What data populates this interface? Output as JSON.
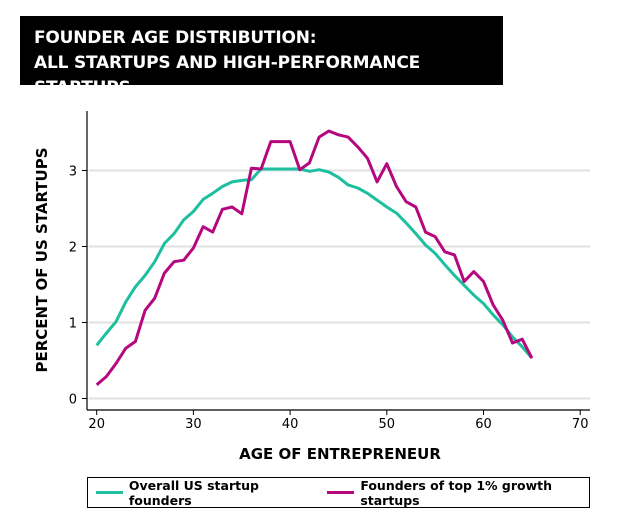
{
  "title_lines": [
    "FOUNDER AGE DISTRIBUTION:",
    "ALL STARTUPS AND HIGH-PERFORMANCE STARTUPS"
  ],
  "chart_data": {
    "type": "line",
    "title": "FOUNDER AGE DISTRIBUTION: ALL STARTUPS AND HIGH-PERFORMANCE STARTUPS",
    "xlabel": "AGE OF ENTREPRENEUR",
    "ylabel": "PERCENT OF US STARTUPS",
    "xlim": [
      20,
      70
    ],
    "ylim": [
      0,
      3.6
    ],
    "xticks": [
      20,
      30,
      40,
      50,
      60,
      70
    ],
    "yticks": [
      0,
      1,
      2,
      3
    ],
    "grid": true,
    "legend_position": "bottom",
    "x": [
      20,
      21,
      22,
      23,
      24,
      25,
      26,
      27,
      28,
      29,
      30,
      31,
      32,
      33,
      34,
      35,
      36,
      37,
      38,
      39,
      40,
      41,
      42,
      43,
      44,
      45,
      46,
      47,
      48,
      49,
      50,
      51,
      52,
      53,
      54,
      55,
      56,
      57,
      58,
      59,
      60,
      61,
      62,
      63,
      64,
      65
    ],
    "series": [
      {
        "name": "Overall US startup founders",
        "color": "#1dbf9f",
        "values": [
          0.7,
          0.86,
          1.01,
          1.27,
          1.47,
          1.62,
          1.8,
          2.04,
          2.17,
          2.35,
          2.46,
          2.62,
          2.7,
          2.79,
          2.85,
          2.87,
          2.88,
          3.02,
          3.02,
          3.02,
          3.02,
          3.02,
          2.99,
          3.01,
          2.98,
          2.91,
          2.81,
          2.77,
          2.7,
          2.61,
          2.52,
          2.44,
          2.31,
          2.17,
          2.02,
          1.91,
          1.76,
          1.62,
          1.49,
          1.36,
          1.25,
          1.1,
          0.97,
          0.81,
          0.68,
          0.53
        ]
      },
      {
        "name": "Founders of top 1% growth startups",
        "color": "#b5087f",
        "values": [
          0.18,
          0.29,
          0.46,
          0.66,
          0.75,
          1.16,
          1.32,
          1.65,
          1.8,
          1.82,
          1.98,
          2.26,
          2.19,
          2.49,
          2.52,
          2.43,
          3.03,
          3.02,
          3.38,
          3.38,
          3.38,
          3.01,
          3.1,
          3.44,
          3.52,
          3.47,
          3.44,
          3.31,
          3.16,
          2.85,
          3.09,
          2.79,
          2.59,
          2.52,
          2.19,
          2.13,
          1.93,
          1.89,
          1.54,
          1.67,
          1.54,
          1.23,
          1.03,
          0.73,
          0.78,
          0.53
        ]
      }
    ]
  }
}
